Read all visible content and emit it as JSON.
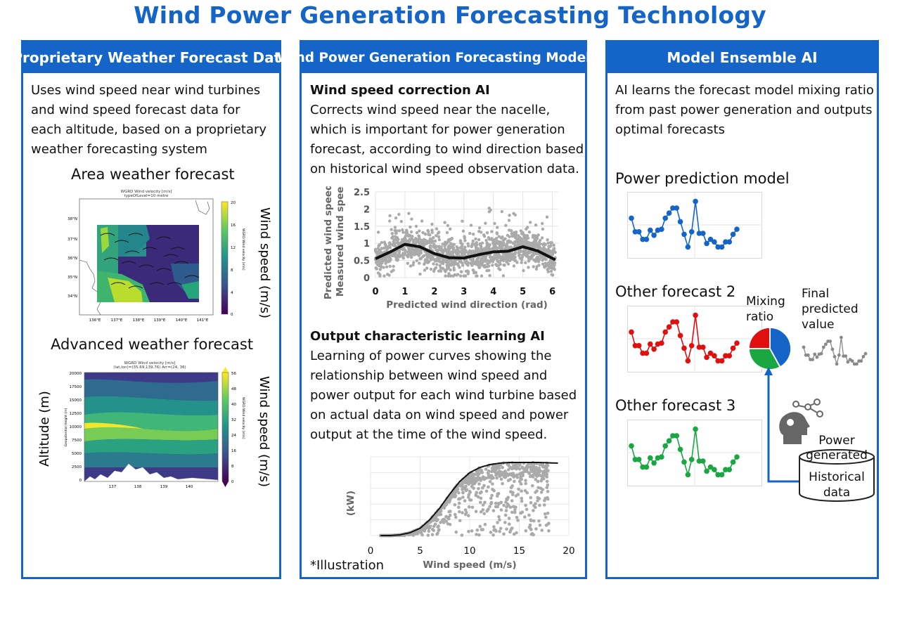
{
  "title": "Wind Power Generation Forecasting Technology",
  "panel1": {
    "header": "Proprietary Weather Forecast Data",
    "text": "Uses wind speed near wind turbines and wind speed forecast data for each altitude, based on a proprietary weather forecasting system",
    "area_heading": "Area weather forecast",
    "map_title1": "WGRD Wind velocity [m/s]",
    "map_title2": "typeOfLevel=10 metre",
    "map_lat_ticks": [
      "38°N",
      "37°N",
      "36°N",
      "35°N",
      "34°N"
    ],
    "map_lon_ticks": [
      "136°E",
      "137°E",
      "138°E",
      "139°E",
      "140°E",
      "141°E"
    ],
    "map_cbar_ticks": [
      "20",
      "16",
      "12",
      "8",
      "4",
      "0"
    ],
    "map_cbar_label": "WGRD Wind velocity [m/s]",
    "map_side_label": "Wind speed (m/s)",
    "advanced_heading": "Advanced weather forecast",
    "adv_title1": "WGRD Wind velocity [m/s]",
    "adv_title2": "(lat,lon)=(35.69,139.76) Arr=(24, 36)",
    "adv_y_ticks": [
      "20000",
      "17500",
      "15000",
      "12500",
      "10000",
      "7500",
      "5000",
      "2500",
      "0"
    ],
    "adv_x_ticks": [
      "137",
      "138",
      "139",
      "140"
    ],
    "adv_y_inner_label": "Geopotential Height (m)",
    "adv_cbar_ticks": [
      "56",
      "48",
      "40",
      "32",
      "24",
      "16",
      "8",
      "0"
    ],
    "adv_cbar_label": "WGRD Wind velocity [m/s]",
    "adv_left_label": "Altitude (m)",
    "adv_side_label": "Wind speed (m/s)"
  },
  "panel2": {
    "header": "Wind Power Generation Forecasting Model AI",
    "s1_heading": "Wind speed correction AI",
    "s1_text": "Corrects wind speed near the nacelle, which is important for power generation forecast, according to wind direction based on historical wind speed observation data.",
    "s2_heading": "Output characteristic learning AI",
    "s2_text": "Learning of power curves showing the relationship between wind speed and power output for each wind turbine based on actual data on wind speed and power output at the time of the wind speed.",
    "note": "*Illustration"
  },
  "panel3": {
    "header": "Model Ensemble AI",
    "text": "AI learns the forecast model mixing ratio from past power generation and outputs optimal forecasts",
    "model1": "Power prediction model",
    "model2": "Other forecast 2",
    "model3": "Other forecast 3",
    "mixing": "Mixing ratio",
    "final": "Final predicted value",
    "power_generated": "Power generated",
    "historical": "Historical data",
    "colors": {
      "blue": "#1565c8",
      "red": "#e01010",
      "green": "#1aa640",
      "gray": "#8a8a8a"
    }
  },
  "chart_data": [
    {
      "type": "scatter",
      "xlabel": "Predicted wind direction (rad)",
      "ylabel": "Predicted wind speed / Measured wind speed",
      "xticks": [
        "0",
        "1",
        "2",
        "3",
        "4",
        "5",
        "6"
      ],
      "yticks": [
        "0",
        "0.5",
        "1",
        "1.5",
        "2",
        "2.5"
      ],
      "xlim": [
        0,
        6.2
      ],
      "ylim": [
        0,
        2.5
      ],
      "fit_curve": {
        "x": [
          0,
          0.5,
          1.0,
          1.5,
          2.0,
          2.5,
          3.0,
          3.5,
          4.0,
          4.5,
          5.0,
          5.5,
          6.1
        ],
        "y": [
          0.55,
          0.75,
          0.97,
          0.9,
          0.7,
          0.58,
          0.57,
          0.67,
          0.75,
          0.77,
          0.9,
          0.78,
          0.52
        ]
      }
    },
    {
      "type": "scatter",
      "xlabel": "Wind speed (m/s)",
      "ylabel": "Power output (kW)",
      "xticks": [
        "0",
        "5",
        "10",
        "15",
        "20"
      ],
      "xlim": [
        0,
        20
      ],
      "ylim": [
        0,
        1
      ],
      "power_curve": {
        "x": [
          1,
          2,
          3,
          4,
          5,
          6,
          7,
          8,
          9,
          10,
          11,
          12,
          13,
          14,
          15,
          17,
          19
        ],
        "y": [
          0,
          0,
          0.01,
          0.04,
          0.1,
          0.22,
          0.38,
          0.57,
          0.74,
          0.86,
          0.93,
          0.97,
          0.99,
          1,
          1,
          1,
          0.99
        ]
      }
    },
    {
      "type": "line",
      "series": [
        {
          "values": [
            0.62,
            0.35,
            0.35,
            0.2,
            0.2,
            0.38,
            0.28,
            0.38,
            0.4,
            0.62,
            0.72,
            0.82,
            0.82,
            0.55,
            0.3,
            0.05,
            0.35,
            0.95,
            0.32,
            0.32,
            0.12,
            0.2,
            0.15,
            0.05,
            0.05,
            0.15,
            0.15,
            0.3,
            0.4
          ],
          "color": "#1565c8"
        },
        {
          "values": [
            0.62,
            0.35,
            0.35,
            0.2,
            0.2,
            0.38,
            0.28,
            0.38,
            0.4,
            0.62,
            0.72,
            0.82,
            0.82,
            0.55,
            0.3,
            0.05,
            0.35,
            0.95,
            0.32,
            0.32,
            0.12,
            0.2,
            0.15,
            0.05,
            0.05,
            0.15,
            0.15,
            0.3,
            0.4
          ],
          "color": "#e01010"
        },
        {
          "values": [
            0.62,
            0.35,
            0.35,
            0.2,
            0.2,
            0.38,
            0.28,
            0.38,
            0.4,
            0.62,
            0.72,
            0.82,
            0.82,
            0.55,
            0.3,
            0.05,
            0.35,
            0.95,
            0.32,
            0.32,
            0.12,
            0.2,
            0.15,
            0.05,
            0.05,
            0.15,
            0.15,
            0.3,
            0.4
          ],
          "color": "#1aa640"
        }
      ]
    },
    {
      "type": "pie",
      "values": [
        0.42,
        0.33,
        0.25
      ],
      "colors": [
        "#1565c8",
        "#1aa640",
        "#e01010"
      ]
    }
  ]
}
